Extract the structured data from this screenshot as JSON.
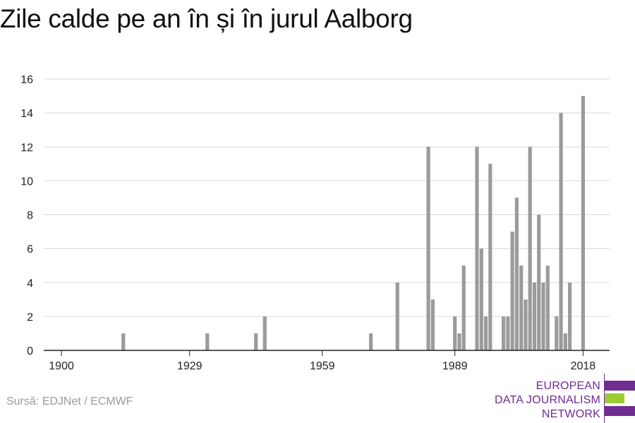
{
  "title": "Zile calde pe an în și în jurul Aalborg",
  "source": "Sursă: EDJNet / ECMWF",
  "logo": {
    "lines": [
      "EUROPEAN",
      "DATA JOURNALISM",
      "NETWORK"
    ],
    "colors": {
      "purple": "#6f2c91",
      "green": "#99cc33"
    }
  },
  "colors": {
    "bar": "#9b9b9b",
    "grid": "#d9d9d9",
    "axis": "#222222"
  },
  "chart_data": {
    "type": "bar",
    "title": "Zile calde pe an în și în jurul Aalborg",
    "xlabel": "",
    "ylabel": "",
    "x_ticks": [
      1900,
      1929,
      1959,
      1989,
      2018
    ],
    "y_ticks": [
      0,
      2,
      4,
      6,
      8,
      10,
      12,
      14,
      16
    ],
    "xlim": [
      1896,
      2024
    ],
    "ylim": [
      0,
      16
    ],
    "grid": true,
    "x": [
      1914,
      1933,
      1944,
      1946,
      1970,
      1976,
      1983,
      1984,
      1989,
      1990,
      1991,
      1994,
      1995,
      1996,
      1997,
      2000,
      2001,
      2002,
      2003,
      2004,
      2005,
      2006,
      2007,
      2008,
      2009,
      2010,
      2012,
      2013,
      2014,
      2015,
      2018
    ],
    "values": [
      1,
      1,
      1,
      2,
      1,
      4,
      12,
      3,
      2,
      1,
      5,
      12,
      6,
      2,
      11,
      2,
      2,
      7,
      9,
      5,
      3,
      12,
      4,
      8,
      4,
      5,
      2,
      14,
      1,
      4,
      15
    ]
  }
}
